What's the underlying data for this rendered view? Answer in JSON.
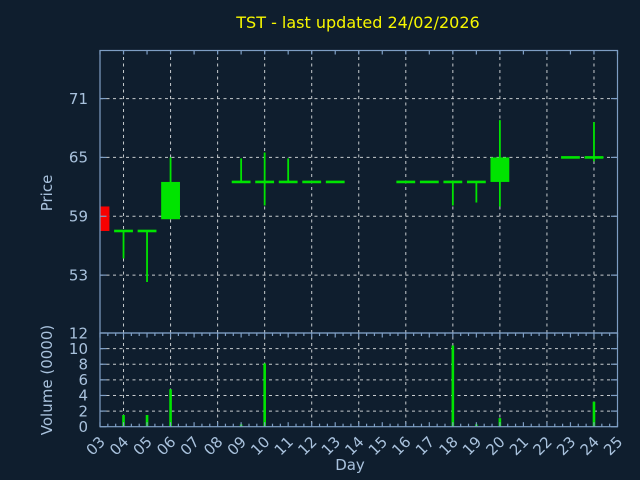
{
  "chart_data": {
    "type": "candlestick",
    "title": "TST - last updated 24/02/2026",
    "xlabel": "Day",
    "price_ylabel": "Price",
    "volume_ylabel": "Volume (0000)",
    "xlim": [
      3,
      25
    ],
    "x_tick_labels": [
      "03",
      "04",
      "05",
      "06",
      "07",
      "08",
      "09",
      "10",
      "11",
      "12",
      "13",
      "14",
      "15",
      "16",
      "17",
      "18",
      "19",
      "20",
      "21",
      "22",
      "23",
      "24",
      "25"
    ],
    "grid_days": [
      4,
      6,
      8,
      10,
      12,
      14,
      16,
      18,
      20,
      22,
      24
    ],
    "price_ylim": [
      47.1,
      75.9
    ],
    "price_ticks": [
      53,
      59,
      65,
      71
    ],
    "volume_ylim": [
      0,
      12
    ],
    "volume_ticks": [
      0,
      2,
      4,
      6,
      8,
      10,
      12
    ],
    "legend": "none",
    "grid": "on",
    "candles": [
      {
        "day": 3,
        "label": "03",
        "open": 60.0,
        "high": 60.0,
        "low": 57.5,
        "close": 57.5,
        "volume": 0
      },
      {
        "day": 4,
        "label": "04",
        "open": 57.5,
        "high": 57.5,
        "low": 54.7,
        "close": 57.5,
        "volume": 1.5
      },
      {
        "day": 5,
        "label": "05",
        "open": 57.5,
        "high": 57.5,
        "low": 52.3,
        "close": 57.5,
        "volume": 1.5
      },
      {
        "day": 6,
        "label": "06",
        "open": 58.7,
        "high": 65.0,
        "low": 58.7,
        "close": 62.5,
        "volume": 4.8
      },
      {
        "day": 9,
        "label": "09",
        "open": 62.5,
        "high": 64.9,
        "low": 62.5,
        "close": 62.5,
        "volume": 0.3
      },
      {
        "day": 10,
        "label": "10",
        "open": 62.5,
        "high": 65.5,
        "low": 60.1,
        "close": 62.5,
        "volume": 8.1
      },
      {
        "day": 11,
        "label": "11",
        "open": 62.5,
        "high": 64.9,
        "low": 62.5,
        "close": 62.5,
        "volume": 0
      },
      {
        "day": 12,
        "label": "12",
        "open": 62.5,
        "high": 62.5,
        "low": 62.5,
        "close": 62.5,
        "volume": 0
      },
      {
        "day": 13,
        "label": "13",
        "open": 62.5,
        "high": 62.5,
        "low": 62.5,
        "close": 62.5,
        "volume": 0
      },
      {
        "day": 16,
        "label": "16",
        "open": 62.5,
        "high": 62.5,
        "low": 62.5,
        "close": 62.5,
        "volume": 0
      },
      {
        "day": 17,
        "label": "17",
        "open": 62.5,
        "high": 62.5,
        "low": 62.5,
        "close": 62.5,
        "volume": 0
      },
      {
        "day": 18,
        "label": "18",
        "open": 62.5,
        "high": 62.5,
        "low": 60.1,
        "close": 62.5,
        "volume": 10.4
      },
      {
        "day": 19,
        "label": "19",
        "open": 62.5,
        "high": 62.5,
        "low": 60.4,
        "close": 62.5,
        "volume": 0.3
      },
      {
        "day": 20,
        "label": "20",
        "open": 62.5,
        "high": 68.8,
        "low": 60.0,
        "close": 65.0,
        "volume": 1.1
      },
      {
        "day": 23,
        "label": "23",
        "open": 65.0,
        "high": 65.0,
        "low": 65.0,
        "close": 65.0,
        "volume": 0
      },
      {
        "day": 24,
        "label": "24",
        "open": 65.0,
        "high": 68.6,
        "low": 64.6,
        "close": 65.0,
        "volume": 3.2
      }
    ],
    "colors": {
      "background": "#0f1e2e",
      "spine": "#7e9ec4",
      "tick_label": "#a9c2dd",
      "grid": "#c7cbce",
      "up": "#00e400",
      "down": "#f80000",
      "volume_bar": "#00e400",
      "title": "#f7f700"
    }
  }
}
